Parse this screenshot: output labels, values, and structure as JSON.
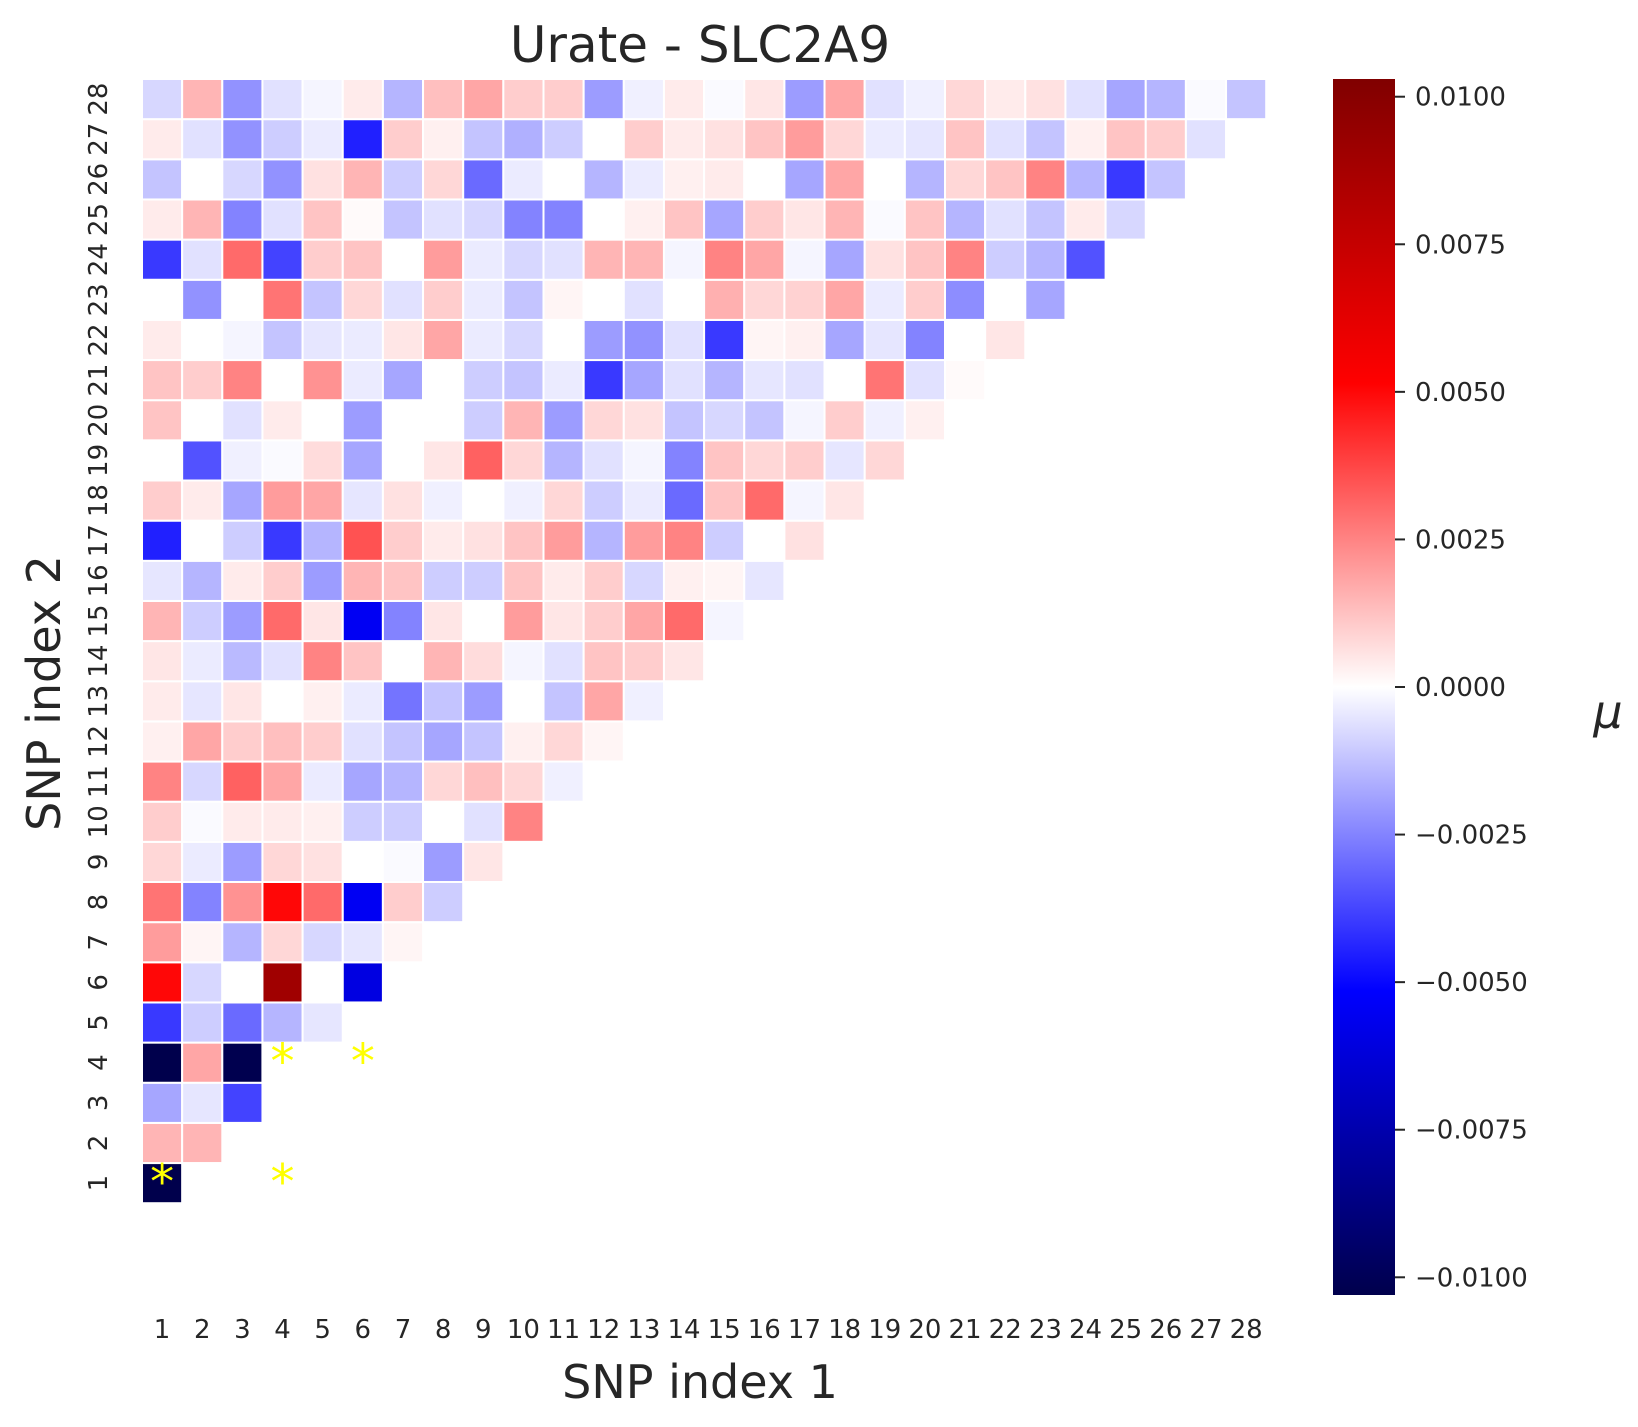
{
  "chart_data": {
    "type": "heatmap",
    "title": "Urate - SLC2A9",
    "xlabel": "SNP index 1",
    "ylabel": "SNP index 2",
    "x_ticks": [
      "1",
      "2",
      "3",
      "4",
      "5",
      "6",
      "7",
      "8",
      "9",
      "10",
      "11",
      "12",
      "13",
      "14",
      "15",
      "16",
      "17",
      "18",
      "19",
      "20",
      "21",
      "22",
      "23",
      "24",
      "25",
      "26",
      "27",
      "28"
    ],
    "y_ticks": [
      "1",
      "2",
      "3",
      "4",
      "5",
      "6",
      "7",
      "8",
      "9",
      "10",
      "11",
      "12",
      "13",
      "14",
      "15",
      "16",
      "17",
      "18",
      "19",
      "20",
      "21",
      "22",
      "23",
      "24",
      "25",
      "26",
      "27",
      "28"
    ],
    "colorbar": {
      "label": "μ",
      "colormap": "seismic",
      "vmin": -0.0103,
      "vmax": 0.0103,
      "ticks": [
        "0.0100",
        "0.0075",
        "0.0050",
        "0.0025",
        "0.0000",
        "−0.0025",
        "−0.0050",
        "−0.0075",
        "−0.0100"
      ],
      "tick_values": [
        0.01,
        0.0075,
        0.005,
        0.0025,
        0,
        -0.0025,
        -0.005,
        -0.0075,
        -0.01
      ]
    },
    "masked": "lower-triangle (cells with SNP index 1 > SNP index 2 are empty)",
    "significance_marker": "*",
    "significant_cells": [
      [
        1,
        1
      ],
      [
        4,
        1
      ],
      [
        4,
        4
      ],
      [
        6,
        4
      ]
    ],
    "rows_note": "values[j-1][i-1] = value at SNP index 1 = i, SNP index 2 = j, for i <= j",
    "values": [
      [
        -0.0103
      ],
      [
        0.0015,
        0.0015
      ],
      [
        -0.0018,
        -0.0005,
        -0.0038
      ],
      [
        -0.0103,
        0.0018,
        -0.0102,
        0
      ],
      [
        -0.004,
        -0.001,
        -0.003,
        -0.0015,
        -0.0005
      ],
      [
        0.005,
        -0.0008,
        0.0,
        0.009,
        0.0,
        -0.006
      ],
      [
        0.002,
        0.0002,
        -0.0015,
        0.0008,
        -0.0008,
        -0.0005,
        0.0002
      ],
      [
        0.0028,
        -0.0025,
        0.0022,
        0.005,
        0.003,
        -0.0055,
        0.001,
        -0.001
      ],
      [
        0.0008,
        -0.0004,
        -0.002,
        0.0008,
        0.0006,
        0.0,
        -0.0001,
        -0.002,
        0.0005
      ],
      [
        0.001,
        -0.0001,
        0.0004,
        0.0004,
        0.0003,
        -0.001,
        -0.001,
        0.0,
        -0.0006,
        0.0025
      ],
      [
        0.0025,
        -0.0008,
        0.0032,
        0.0018,
        -0.0004,
        -0.0018,
        -0.0015,
        0.0008,
        0.0013,
        0.0008,
        -0.0003
      ],
      [
        0.0003,
        0.0018,
        0.001,
        0.0013,
        0.001,
        -0.0006,
        -0.0012,
        -0.0018,
        -0.0012,
        0.0003,
        0.0008,
        0.0002
      ],
      [
        0.0004,
        -0.0005,
        0.0005,
        0.0,
        0.0003,
        -0.0004,
        -0.0028,
        -0.0012,
        -0.002,
        0.0,
        -0.0012,
        0.0018,
        -0.0003
      ],
      [
        0.0005,
        -0.0004,
        -0.0014,
        -0.0006,
        0.0025,
        0.0012,
        0.0,
        0.0015,
        0.0007,
        -0.0002,
        -0.0006,
        0.0012,
        0.001,
        0.0005
      ],
      [
        0.0015,
        -0.001,
        -0.002,
        0.003,
        0.0005,
        -0.0055,
        -0.0025,
        0.0005,
        0.0,
        0.002,
        0.0005,
        0.001,
        0.0018,
        0.003,
        -0.0002
      ],
      [
        -0.0005,
        -0.0015,
        0.0004,
        0.001,
        -0.002,
        0.0015,
        0.0012,
        -0.001,
        -0.001,
        0.0012,
        0.0004,
        0.001,
        -0.0008,
        0.0003,
        0.0002,
        -0.0005
      ],
      [
        -0.0045,
        0.0,
        -0.001,
        -0.004,
        -0.0015,
        0.0035,
        0.001,
        0.0004,
        0.0006,
        0.0012,
        0.002,
        -0.0015,
        0.002,
        0.0025,
        -0.001,
        0.0,
        0.0006
      ],
      [
        0.001,
        0.0004,
        -0.0018,
        0.002,
        0.0018,
        -0.0005,
        0.0006,
        -0.0003,
        0.0,
        -0.0003,
        0.0008,
        -0.001,
        -0.0004,
        -0.003,
        0.0012,
        0.003,
        -0.0002,
        0.0005
      ],
      [
        0.0,
        -0.0035,
        -0.0003,
        -0.0001,
        0.0007,
        -0.0018,
        0.0,
        0.0005,
        0.0032,
        0.0008,
        -0.0015,
        -0.0006,
        -0.0002,
        -0.0025,
        0.0012,
        0.0008,
        0.001,
        -0.0005,
        0.0008
      ],
      [
        0.0012,
        0.0,
        -0.0006,
        0.0004,
        0.0,
        -0.002,
        0.0,
        0.0,
        -0.001,
        0.0015,
        -0.002,
        0.0008,
        0.0006,
        -0.0012,
        -0.0008,
        -0.0012,
        -0.0002,
        0.001,
        -0.0003,
        0.0003
      ],
      [
        0.0012,
        0.001,
        0.0025,
        0.0,
        0.0022,
        -0.0004,
        -0.0018,
        0.0,
        -0.001,
        -0.0012,
        -0.0004,
        -0.004,
        -0.0018,
        -0.0006,
        -0.0015,
        -0.0005,
        -0.0006,
        0.0,
        0.0028,
        -0.0006,
        0.0001
      ],
      [
        0.0004,
        0.0,
        -0.0002,
        -0.0012,
        -0.0005,
        -0.0004,
        0.0005,
        0.0018,
        -0.0004,
        -0.0008,
        0.0,
        -0.002,
        -0.0022,
        -0.0006,
        -0.004,
        0.0002,
        0.0003,
        -0.0018,
        -0.0005,
        -0.0025,
        0.0,
        0.0005
      ],
      [
        0.0,
        -0.0022,
        0.0,
        0.0028,
        -0.0012,
        0.0008,
        -0.0006,
        0.001,
        -0.0004,
        -0.0012,
        0.0002,
        0.0,
        -0.0006,
        0.0,
        0.0016,
        0.0008,
        0.0009,
        0.0018,
        -0.0004,
        0.001,
        -0.0023,
        0.0,
        -0.0018
      ],
      [
        -0.004,
        -0.0006,
        0.003,
        -0.0038,
        0.001,
        0.0012,
        0.0,
        0.002,
        -0.0004,
        -0.0008,
        -0.0006,
        0.0015,
        0.0015,
        -0.0002,
        0.0025,
        0.0018,
        -0.0002,
        -0.0018,
        0.0006,
        0.0012,
        0.0025,
        -0.001,
        -0.0015,
        -0.0035
      ],
      [
        0.0004,
        0.0015,
        -0.0025,
        -0.0006,
        0.0012,
        0.0001,
        -0.0012,
        -0.0006,
        -0.0008,
        -0.0025,
        -0.0025,
        0.0,
        0.0003,
        0.0012,
        -0.0018,
        0.001,
        0.0005,
        0.0015,
        -0.0001,
        0.0012,
        -0.0015,
        -0.0006,
        -0.0012,
        0.0004,
        -0.0008
      ],
      [
        -0.0012,
        0.0,
        -0.0008,
        -0.0022,
        0.0006,
        0.0015,
        -0.001,
        0.0008,
        -0.003,
        -0.0004,
        0.0,
        -0.0015,
        -0.0004,
        0.0003,
        0.0004,
        0.0,
        -0.0018,
        0.0018,
        0.0,
        -0.0015,
        0.0008,
        0.0012,
        0.0025,
        -0.0015,
        -0.004,
        -0.0012
      ],
      [
        0.0004,
        -0.0006,
        -0.0022,
        -0.001,
        -0.0004,
        -0.0045,
        0.001,
        0.0003,
        -0.0012,
        -0.0016,
        -0.001,
        0.0,
        0.001,
        0.0004,
        0.0006,
        0.0012,
        0.002,
        0.0008,
        -0.0004,
        -0.0005,
        0.0012,
        -0.0006,
        -0.0012,
        0.0003,
        0.0012,
        0.001,
        -0.0006
      ],
      [
        -0.0008,
        0.0015,
        -0.0022,
        -0.0006,
        -0.0002,
        0.0004,
        -0.0015,
        0.0013,
        0.0018,
        0.001,
        0.001,
        -0.002,
        -0.0003,
        0.0004,
        -0.0001,
        0.0005,
        -0.002,
        0.0018,
        -0.0006,
        -0.0003,
        0.0008,
        0.0004,
        0.0006,
        -0.0006,
        -0.0018,
        -0.0015,
        -0.0001,
        -0.0012
      ]
    ]
  }
}
